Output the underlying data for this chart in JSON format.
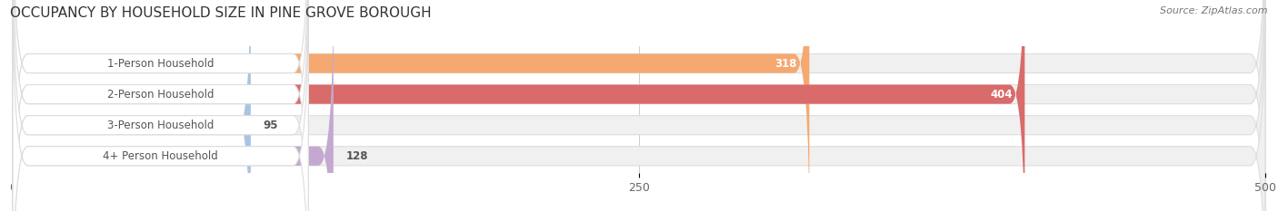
{
  "title": "OCCUPANCY BY HOUSEHOLD SIZE IN PINE GROVE BOROUGH",
  "source": "Source: ZipAtlas.com",
  "categories": [
    "1-Person Household",
    "2-Person Household",
    "3-Person Household",
    "4+ Person Household"
  ],
  "values": [
    318,
    404,
    95,
    128
  ],
  "bar_colors": [
    "#F5A870",
    "#D96B6B",
    "#A8C4E0",
    "#C4A8D0"
  ],
  "bar_bg_color": "#EFEFEF",
  "xlim": [
    -10,
    510
  ],
  "xlim_data": [
    0,
    500
  ],
  "xticks": [
    0,
    250,
    500
  ],
  "label_fontsize": 8.5,
  "title_fontsize": 11,
  "value_color_inside": "#FFFFFF",
  "value_color_outside": "#555555",
  "label_color": "#555555",
  "background_color": "#FFFFFF",
  "bar_edge_color": "#DDDDDD"
}
